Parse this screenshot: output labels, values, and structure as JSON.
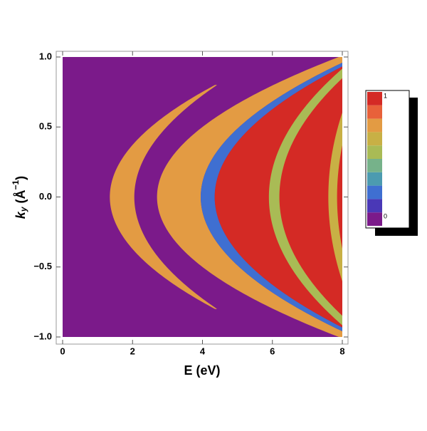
{
  "chart_data": {
    "type": "density",
    "x_label": "E (eV)",
    "y_label": [
      "k",
      "y",
      " (Å",
      "−1",
      ")"
    ],
    "xlim": [
      0,
      8
    ],
    "xticks": [
      0,
      2,
      4,
      6,
      8
    ],
    "ylim": [
      -1,
      1
    ],
    "yticks": [
      {
        "value": -1,
        "label": "−1.0"
      },
      {
        "value": -0.5,
        "label": "−0.5"
      },
      {
        "value": 0,
        "label": "0.0"
      },
      0.5,
      {
        "value": 1,
        "label": "1.0"
      }
    ],
    "background_value": 0,
    "bands": [
      {
        "value": 0.8,
        "inner": [
          1.35,
          4.7
        ],
        "outer": [
          2.05,
          3.7
        ],
        "kmax": 0.8
      },
      {
        "value": 0.8,
        "inner": [
          2.7,
          5.2
        ],
        "outer": [
          3.95,
          4.4
        ],
        "kmax": 1
      },
      {
        "value": 0.25,
        "inner": [
          3.95,
          4.4
        ],
        "outer": [
          4.35,
          4.2
        ],
        "kmax": 1
      },
      {
        "value": 0.95,
        "inner": [
          4.35,
          4.2
        ],
        "outer": [
          12,
          0
        ],
        "kmax": 1
      },
      {
        "value": 0.6,
        "inner": [
          5.9,
          2.5
        ],
        "outer": [
          6.2,
          2.5
        ],
        "kmax": 1
      },
      {
        "value": 0.65,
        "inner": [
          7.6,
          1.1
        ],
        "outer": [
          7.85,
          1.1
        ],
        "kmax": 1
      }
    ],
    "colorbar": {
      "colors": [
        "#7b1a8a",
        "#4a38b7",
        "#3f6fd1",
        "#4c9bb0",
        "#76b28a",
        "#a9bb55",
        "#c8b045",
        "#e39b43",
        "#e8613a",
        "#d42a25"
      ],
      "ticks": [
        0,
        1
      ]
    }
  }
}
